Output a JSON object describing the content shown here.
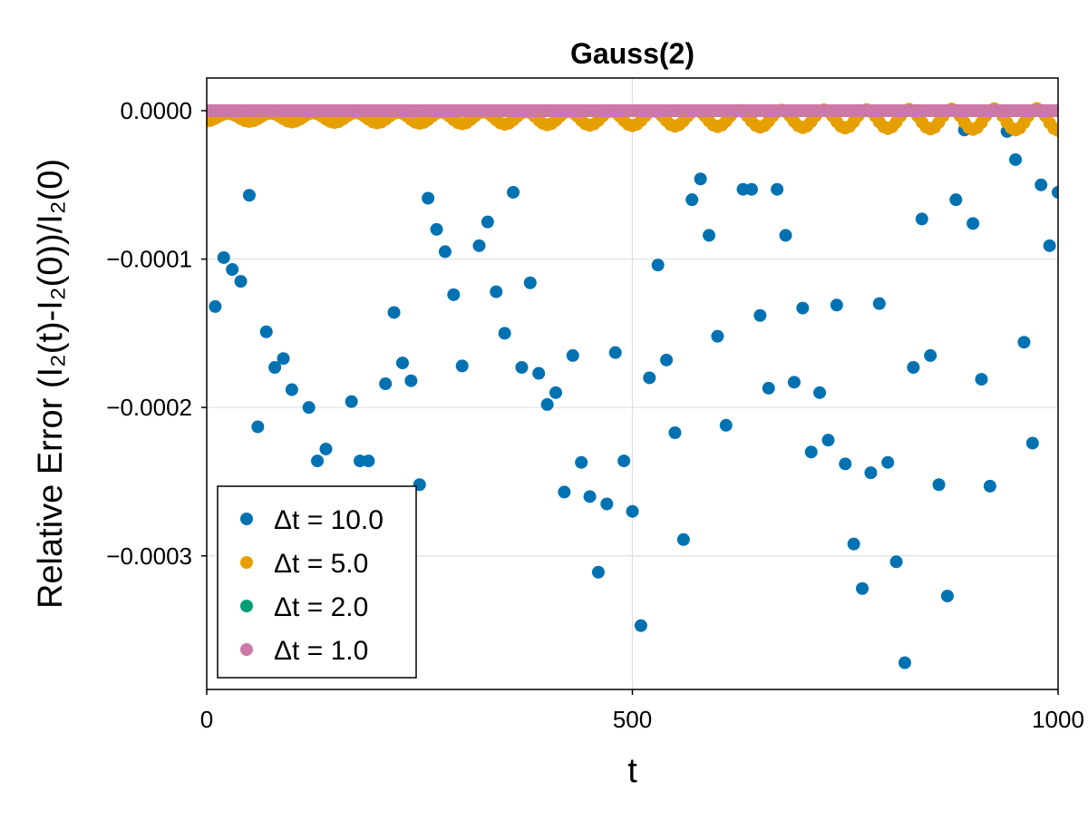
{
  "chart_data": {
    "type": "scatter",
    "title": "Gauss(2)",
    "xlabel": "t",
    "ylabel": "Relative Error (I₂(t)-I₂(0))/I₂(0)",
    "xlim": [
      0,
      1000
    ],
    "ylim": [
      -0.00039,
      2.2e-05
    ],
    "xticks": [
      0,
      500,
      1000
    ],
    "xtick_labels": [
      "0",
      "500",
      "1000"
    ],
    "yticks": [
      0.0,
      -0.0001,
      -0.0002,
      -0.0003
    ],
    "ytick_labels": [
      "0.0000",
      "−0.0001",
      "−0.0002",
      "−0.0003"
    ],
    "grid": true,
    "legend_position": "bottom-left",
    "series": [
      {
        "name": "Δt = 10.0",
        "color": "#0072b2",
        "x": [
          10,
          20,
          30,
          40,
          50,
          60,
          70,
          80,
          90,
          100,
          120,
          130,
          140,
          170,
          180,
          190,
          210,
          220,
          230,
          240,
          250,
          260,
          270,
          280,
          290,
          300,
          320,
          330,
          340,
          350,
          360,
          370,
          380,
          390,
          400,
          410,
          420,
          430,
          440,
          450,
          460,
          470,
          480,
          490,
          500,
          510,
          520,
          530,
          540,
          550,
          560,
          570,
          580,
          590,
          600,
          610,
          630,
          640,
          650,
          660,
          670,
          680,
          690,
          700,
          710,
          720,
          730,
          740,
          750,
          760,
          770,
          780,
          790,
          800,
          810,
          820,
          830,
          840,
          850,
          860,
          870,
          880,
          890,
          900,
          910,
          920,
          940,
          950,
          960,
          970,
          980,
          990,
          1000
        ],
        "y": [
          -0.000132,
          -9.9e-05,
          -0.000107,
          -0.000115,
          -5.7e-05,
          -0.000213,
          -0.000149,
          -0.000173,
          -0.000167,
          -0.000188,
          -0.0002,
          -0.000236,
          -0.000228,
          -0.000196,
          -0.000236,
          -0.000236,
          -0.000184,
          -0.000136,
          -0.00017,
          -0.000182,
          -0.000252,
          -5.9e-05,
          -8e-05,
          -9.5e-05,
          -0.000124,
          -0.000172,
          -9.1e-05,
          -7.5e-05,
          -0.000122,
          -0.00015,
          -5.5e-05,
          -0.000173,
          -0.000116,
          -0.000177,
          -0.000198,
          -0.00019,
          -0.000257,
          -0.000165,
          -0.000237,
          -0.00026,
          -0.000311,
          -0.000265,
          -0.000163,
          -0.000236,
          -0.00027,
          -0.000347,
          -0.00018,
          -0.000104,
          -0.000168,
          -0.000217,
          -0.000289,
          -6e-05,
          -4.6e-05,
          -8.4e-05,
          -0.000152,
          -0.000212,
          -5.3e-05,
          -5.3e-05,
          -0.000138,
          -0.000187,
          -5.3e-05,
          -8.4e-05,
          -0.000183,
          -0.000133,
          -0.00023,
          -0.00019,
          -0.000222,
          -0.000131,
          -0.000238,
          -0.000292,
          -0.000322,
          -0.000244,
          -0.00013,
          -0.000237,
          -0.000304,
          -0.000372,
          -0.000173,
          -7.3e-05,
          -0.000165,
          -0.000252,
          -0.000327,
          -6e-05,
          -1.3e-05,
          -7.6e-05,
          -0.000181,
          -0.000253,
          -1.4e-05,
          -3.3e-05,
          -0.000156,
          -0.000224,
          -5e-05,
          -9.1e-05,
          -5.5e-05
        ]
      },
      {
        "name": "Δt = 5.0",
        "color": "#e69f00",
        "period": 50,
        "amplitude_start": 5e-06,
        "amplitude_end": 1.5e-05,
        "drift_per_1000": 1.2e-05,
        "x_range": [
          0,
          1000
        ],
        "step": 5
      },
      {
        "name": "Δt = 2.0",
        "color": "#009e73",
        "constant_y": 0.0,
        "x_range": [
          0,
          1000
        ],
        "step": 2
      },
      {
        "name": "Δt = 1.0",
        "color": "#cc79a7",
        "constant_y": 0.0,
        "x_range": [
          0,
          1000
        ],
        "step": 1
      }
    ]
  }
}
